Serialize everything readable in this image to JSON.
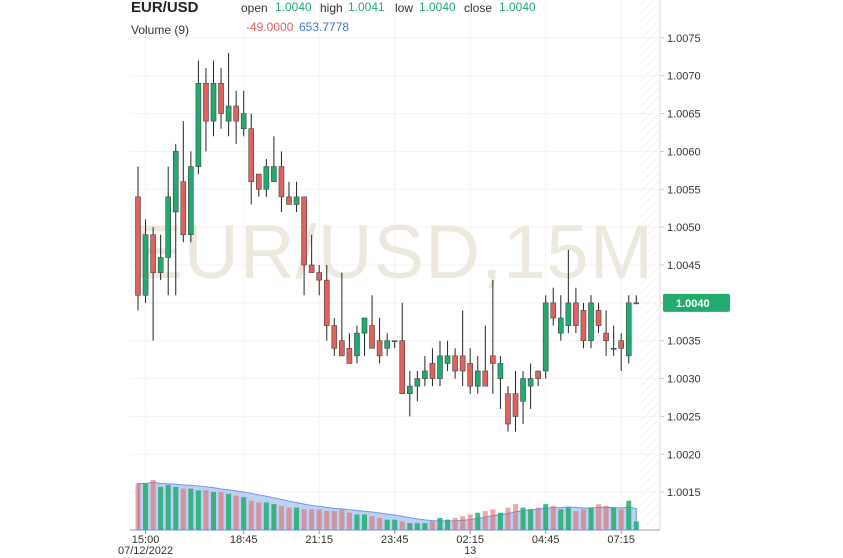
{
  "chart_data": {
    "type": "candlestick",
    "symbol": "EUR/USD",
    "watermark": "EUR/USD,15M",
    "header": {
      "open_label": "open",
      "open": {
        "value": 1.004,
        "label": "1.0040"
      },
      "high_label": "high",
      "high": {
        "value": 1.0041,
        "label": "1.0041"
      },
      "low_label": "low",
      "low": {
        "value": 1.004,
        "label": "1.0040"
      },
      "close_label": "close",
      "close": {
        "value": 1.004,
        "label": "1.0040"
      }
    },
    "volume_header": {
      "title": "Volume (9)",
      "change": {
        "value": -49,
        "label": "-49.0000"
      },
      "average": {
        "value": 653.7778,
        "label": "653.7778"
      }
    },
    "last_price": {
      "value": 1.004,
      "label": "1.0040"
    },
    "up_color": "#22ab6e",
    "down_color": "#e0625d",
    "categories": [
      null,
      "15:00",
      null,
      null,
      null,
      null,
      null,
      null,
      null,
      null,
      null,
      null,
      null,
      null,
      "18:45",
      null,
      null,
      null,
      null,
      null,
      null,
      null,
      null,
      null,
      "21:15",
      null,
      null,
      null,
      null,
      null,
      null,
      null,
      null,
      null,
      "23:45",
      null,
      null,
      null,
      null,
      null,
      null,
      null,
      null,
      null,
      "02:15",
      null,
      null,
      null,
      null,
      null,
      null,
      null,
      null,
      null,
      "04:45",
      null,
      null,
      null,
      null,
      null,
      null,
      null,
      null,
      null,
      "07:15",
      null,
      null
    ],
    "dates": [
      null,
      "07/12/2022",
      null,
      null,
      null,
      null,
      null,
      null,
      null,
      null,
      null,
      null,
      null,
      null,
      null,
      null,
      null,
      null,
      null,
      null,
      null,
      null,
      null,
      null,
      null,
      null,
      null,
      null,
      null,
      null,
      null,
      null,
      null,
      null,
      null,
      null,
      null,
      null,
      null,
      null,
      null,
      null,
      null,
      null,
      "13",
      null,
      null,
      null,
      null,
      null,
      null,
      null,
      null,
      null,
      null,
      null,
      null,
      null,
      null,
      null,
      null,
      null,
      null,
      null,
      null,
      null,
      null
    ],
    "open": [
      1.0054,
      1.0041,
      1.0049,
      1.0044,
      1.0046,
      1.0052,
      1.0056,
      1.0049,
      1.0058,
      1.0069,
      1.0064,
      1.0069,
      1.0064,
      1.0066,
      1.0063,
      1.0063,
      1.0057,
      1.0055,
      1.0056,
      1.0058,
      1.0054,
      1.0053,
      1.0054,
      1.0045,
      1.0044,
      1.0043,
      1.0037,
      1.0035,
      1.0034,
      1.0033,
      1.0036,
      1.0037,
      1.0035,
      1.0034,
      1.0035,
      1.0035,
      1.0028,
      1.0029,
      1.003,
      1.0032,
      1.003,
      1.0032,
      1.0033,
      1.0033,
      1.0032,
      1.0029,
      1.0031,
      1.0033,
      1.003,
      1.0028,
      1.0028,
      1.0027,
      1.0029,
      1.0031,
      1.0031,
      1.004,
      1.0036,
      1.0037,
      1.004,
      1.0039,
      1.0035,
      1.0039,
      1.0036,
      1.0034,
      1.0035,
      1.0033,
      1.004
    ],
    "high": [
      1.0058,
      1.0051,
      1.005,
      1.0049,
      1.0058,
      1.0061,
      1.0064,
      1.006,
      1.0072,
      1.0071,
      1.0072,
      1.0071,
      1.0073,
      1.0068,
      1.0068,
      1.0065,
      1.0057,
      1.0059,
      1.0062,
      1.006,
      1.0056,
      1.0056,
      1.0054,
      1.0049,
      1.0045,
      1.0045,
      1.0038,
      1.0044,
      1.0036,
      1.0037,
      1.0038,
      1.0041,
      1.0038,
      1.0036,
      1.0035,
      1.004,
      1.0031,
      1.0031,
      1.0033,
      1.0034,
      1.0035,
      1.0035,
      1.0034,
      1.0039,
      1.0034,
      1.0033,
      1.0037,
      1.0043,
      1.0033,
      1.0029,
      1.0031,
      1.0031,
      1.0032,
      1.0031,
      1.0041,
      1.0042,
      1.0041,
      1.0047,
      1.0042,
      1.004,
      1.0041,
      1.004,
      1.0039,
      1.0037,
      1.0036,
      1.0041,
      1.0041
    ],
    "low": [
      1.0039,
      1.004,
      1.0035,
      1.0043,
      1.0041,
      1.0041,
      1.0048,
      1.0048,
      1.0057,
      1.006,
      1.0062,
      1.0063,
      1.0062,
      1.0061,
      1.0062,
      1.0053,
      1.0054,
      1.0054,
      1.0056,
      1.0052,
      1.0053,
      1.0052,
      1.0041,
      1.0044,
      1.0041,
      1.0035,
      1.0033,
      1.0033,
      1.0032,
      1.0032,
      1.0033,
      1.0034,
      1.0032,
      1.0033,
      1.0034,
      1.0028,
      1.0025,
      1.0027,
      1.0029,
      1.0029,
      1.0029,
      1.0031,
      1.003,
      1.0029,
      1.0028,
      1.0028,
      1.0029,
      1.0028,
      1.0026,
      1.0023,
      1.0023,
      1.0024,
      1.0026,
      1.0029,
      1.003,
      1.0037,
      1.0035,
      1.0036,
      1.0036,
      1.0034,
      1.0034,
      1.0036,
      1.0033,
      1.0033,
      1.0031,
      1.0032,
      1.004
    ],
    "close": [
      1.0041,
      1.0049,
      1.0044,
      1.0046,
      1.0054,
      1.006,
      1.0049,
      1.0058,
      1.0069,
      1.0064,
      1.0069,
      1.0065,
      1.0066,
      1.0064,
      1.0065,
      1.0056,
      1.0055,
      1.0058,
      1.0058,
      1.0054,
      1.0053,
      1.0054,
      1.0045,
      1.0044,
      1.0043,
      1.0037,
      1.0034,
      1.0033,
      1.0032,
      1.0036,
      1.0038,
      1.0034,
      1.0033,
      1.0035,
      1.0035,
      1.0028,
      1.0029,
      1.003,
      1.0031,
      1.003,
      1.0033,
      1.0033,
      1.0031,
      1.0031,
      1.0029,
      1.0031,
      1.0029,
      1.0032,
      1.0032,
      1.0024,
      1.0025,
      1.003,
      1.003,
      1.003,
      1.004,
      1.0038,
      1.0038,
      1.004,
      1.0037,
      1.0035,
      1.004,
      1.0037,
      1.0035,
      1.0034,
      1.0034,
      1.004,
      1.004
    ],
    "volume": {
      "values": [
        2700,
        2700,
        2900,
        2500,
        2600,
        2500,
        2400,
        2400,
        2300,
        2300,
        2200,
        2200,
        2100,
        2000,
        1900,
        1700,
        1600,
        1600,
        1500,
        1400,
        1300,
        1300,
        1200,
        1200,
        1200,
        1100,
        1100,
        1200,
        1000,
        900,
        900,
        800,
        700,
        600,
        600,
        500,
        400,
        400,
        400,
        500,
        700,
        600,
        700,
        800,
        900,
        1000,
        1100,
        1200,
        1000,
        1300,
        1500,
        1300,
        1200,
        1300,
        1500,
        1400,
        1200,
        1300,
        1100,
        1200,
        1300,
        1500,
        1400,
        1300,
        1200,
        1700,
        500
      ]
    },
    "ylim": [
      1.001,
      1.008
    ],
    "yticks": [
      1.0015,
      {
        "value": 1.002,
        "label": "1.0020"
      },
      1.0025,
      {
        "value": 1.003,
        "label": "1.0030"
      },
      1.0035,
      {
        "value": 1.004,
        "label": "1.0040"
      },
      1.0045,
      {
        "value": 1.005,
        "label": "1.0050"
      },
      1.0055,
      {
        "value": 1.006,
        "label": "1.0060"
      },
      1.0065,
      {
        "value": 1.007,
        "label": "1.0070"
      },
      1.0075
    ],
    "grid": true
  }
}
